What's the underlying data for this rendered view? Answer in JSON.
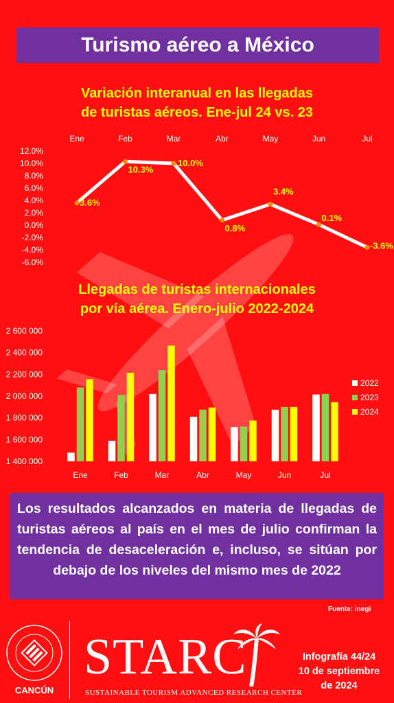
{
  "header": {
    "title": "Turismo aéreo a México"
  },
  "chart1": {
    "title_line1": "Variación interanual en las llegadas",
    "title_line2": "de turistas aéreos. Ene-jul 24 vs. 23"
  },
  "chart2": {
    "title_line1": "Llegadas de turistas internacionales",
    "title_line2": "por vía aérea. Enero-julio 2022-2024"
  },
  "chart_data": [
    {
      "type": "line",
      "categories": [
        "Ene",
        "Feb",
        "Mar",
        "Abr",
        "May",
        "Jun",
        "Jul"
      ],
      "values": [
        3.6,
        10.3,
        10.0,
        0.8,
        3.4,
        0.1,
        -3.6
      ],
      "data_labels": [
        "3.6%",
        "10.3%",
        "10.0%",
        "0.8%",
        "3.4%",
        "0.1%",
        "-3.6%"
      ],
      "y_ticks": [
        "12.0%",
        "10.0%",
        "8.0%",
        "6.0%",
        "4.0%",
        "2.0%",
        "0.0%",
        "-2.0%",
        "-4.0%",
        "-6.0%"
      ],
      "ylim": [
        -6,
        12
      ],
      "x_axis_position": "top",
      "line_color": "#ffffff",
      "marker_color": "#ff8c00",
      "label_color": "#ffff00"
    },
    {
      "type": "bar",
      "categories": [
        "Ene",
        "Feb",
        "Mar",
        "Abr",
        "May",
        "Jun",
        "Jul"
      ],
      "series": [
        {
          "name": "2022",
          "color": "#ffffff",
          "values": [
            1480000,
            1590000,
            2020000,
            1810000,
            1715000,
            1875000,
            2015000
          ]
        },
        {
          "name": "2023",
          "color": "#92d050",
          "values": [
            2080000,
            2010000,
            2240000,
            1875000,
            1720000,
            1900000,
            2020000
          ]
        },
        {
          "name": "2024",
          "color": "#ffff00",
          "values": [
            2155000,
            2215000,
            2465000,
            1895000,
            1775000,
            1900000,
            1945000
          ]
        }
      ],
      "y_ticks": [
        "2 600 000",
        "2 400 000",
        "2 200 000",
        "2 000 000",
        "1 800 000",
        "1 600 000",
        "1 400 000"
      ],
      "ylim": [
        1400000,
        2600000
      ],
      "legend": "right"
    }
  ],
  "summary": {
    "text": "Los resultados alcanzados en materia de llegadas de turistas aéreos al país en el mes de julio confirman la tendencia de desaceleración e, incluso, se sitúan por debajo de los niveles del mismo mes de 2022"
  },
  "source": {
    "text": "Fuente: inegi"
  },
  "footer": {
    "university_seal": "UNIVERSIDAD ANÁHUAC · VINCE IN BONO MALUM",
    "campus": "CANCÚN",
    "brand": "STARC",
    "brand_sub": "SUSTAINABLE TOURISM ADVANCED RESEARCH CENTER",
    "info_line1": "Infografía 44/24",
    "info_line2": "10 de septiembre",
    "info_line3": "de 2024"
  },
  "colors": {
    "background": "#ff0f0f",
    "purple": "#7030a0",
    "yellow": "#ffff00"
  }
}
